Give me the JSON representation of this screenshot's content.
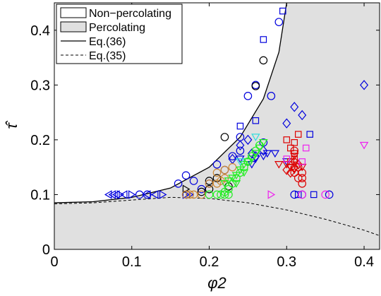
{
  "chart_data": {
    "type": "scatter",
    "xlabel": "φ2",
    "ylabel": "τ̂",
    "xlim": [
      0,
      0.42
    ],
    "ylim": [
      0,
      0.45
    ],
    "xticks": [
      "0",
      "0.1",
      "0.2",
      "0.3",
      "0.4"
    ],
    "yticks": [
      "0",
      "0.1",
      "0.2",
      "0.3",
      "0.4"
    ],
    "legend": {
      "placement": "top-left",
      "entries": [
        "Non−percolating",
        "Percolating",
        "Eq.(36)",
        "Eq.(35)"
      ]
    },
    "regions": [
      {
        "name": "Non−percolating",
        "fill": "#ffffff"
      },
      {
        "name": "Percolating",
        "fill": "#e0e0e0"
      }
    ],
    "curves": [
      {
        "name": "Eq.(36)",
        "style": "solid",
        "x": [
          0,
          0.05,
          0.1,
          0.15,
          0.2,
          0.24,
          0.27,
          0.29,
          0.3
        ],
        "y": [
          0.085,
          0.087,
          0.095,
          0.112,
          0.15,
          0.205,
          0.275,
          0.36,
          0.45
        ]
      },
      {
        "name": "Eq.(35)",
        "style": "dashed",
        "x": [
          0,
          0.05,
          0.1,
          0.15,
          0.2,
          0.25,
          0.3,
          0.35,
          0.4,
          0.42
        ],
        "y": [
          0.083,
          0.085,
          0.09,
          0.095,
          0.093,
          0.085,
          0.072,
          0.055,
          0.035,
          0.025
        ]
      }
    ],
    "series": [
      {
        "color": "#0000dd",
        "marker": "circle",
        "points": [
          [
            0.11,
            0.1
          ],
          [
            0.12,
            0.1
          ],
          [
            0.16,
            0.12
          ],
          [
            0.17,
            0.135
          ],
          [
            0.18,
            0.125
          ],
          [
            0.19,
            0.11
          ],
          [
            0.2,
            0.12
          ],
          [
            0.21,
            0.155
          ],
          [
            0.22,
            0.145
          ],
          [
            0.23,
            0.17
          ],
          [
            0.24,
            0.18
          ],
          [
            0.25,
            0.28
          ],
          [
            0.26,
            0.3
          ],
          [
            0.25,
            0.16
          ],
          [
            0.31,
            0.1
          ],
          [
            0.32,
            0.1
          ],
          [
            0.355,
            0.1
          ],
          [
            0.29,
            0.415
          ],
          [
            0.28,
            0.28
          ],
          [
            0.27,
            0.195
          ],
          [
            0.24,
            0.205
          ]
        ]
      },
      {
        "color": "#0000dd",
        "marker": "square",
        "points": [
          [
            0.295,
            0.435
          ],
          [
            0.27,
            0.383
          ],
          [
            0.24,
            0.225
          ],
          [
            0.26,
            0.235
          ],
          [
            0.315,
            0.1
          ],
          [
            0.33,
            0.21
          ],
          [
            0.335,
            0.1
          ]
        ]
      },
      {
        "color": "#0000dd",
        "marker": "diamond",
        "points": [
          [
            0.4,
            0.3
          ],
          [
            0.31,
            0.26
          ],
          [
            0.32,
            0.245
          ],
          [
            0.3,
            0.23
          ],
          [
            0.25,
            0.2
          ],
          [
            0.26,
            0.17
          ],
          [
            0.27,
            0.18
          ],
          [
            0.24,
            0.19
          ],
          [
            0.23,
            0.165
          ],
          [
            0.255,
            0.175
          ]
        ]
      },
      {
        "color": "#0000dd",
        "marker": "triangle-down",
        "points": [
          [
            0.24,
            0.165
          ],
          [
            0.255,
            0.155
          ],
          [
            0.27,
            0.17
          ],
          [
            0.275,
            0.175
          ],
          [
            0.26,
            0.165
          ],
          [
            0.285,
            0.175
          ],
          [
            0.3,
            0.16
          ]
        ]
      },
      {
        "color": "#0000dd",
        "marker": "triangle-left",
        "points": [
          [
            0.07,
            0.1
          ],
          [
            0.075,
            0.1
          ],
          [
            0.08,
            0.1
          ],
          [
            0.09,
            0.1
          ],
          [
            0.12,
            0.1
          ],
          [
            0.13,
            0.1
          ]
        ]
      },
      {
        "color": "#0000dd",
        "marker": "triangle-right",
        "points": [
          [
            0.085,
            0.1
          ],
          [
            0.1,
            0.1
          ],
          [
            0.14,
            0.1
          ],
          [
            0.17,
            0.1
          ],
          [
            0.175,
            0.1
          ]
        ]
      },
      {
        "color": "#000000",
        "marker": "circle",
        "points": [
          [
            0.27,
            0.345
          ],
          [
            0.26,
            0.298
          ],
          [
            0.22,
            0.205
          ],
          [
            0.21,
            0.13
          ],
          [
            0.2,
            0.125
          ],
          [
            0.2,
            0.11
          ],
          [
            0.19,
            0.105
          ],
          [
            0.225,
            0.115
          ]
        ]
      },
      {
        "color": "#000000",
        "marker": "triangle-right",
        "points": [
          [
            0.17,
            0.11
          ]
        ]
      },
      {
        "color": "#cc8833",
        "marker": "circle",
        "points": [
          [
            0.17,
            0.1
          ],
          [
            0.175,
            0.1
          ],
          [
            0.18,
            0.1
          ],
          [
            0.19,
            0.1
          ],
          [
            0.2,
            0.12
          ],
          [
            0.215,
            0.125
          ],
          [
            0.22,
            0.13
          ],
          [
            0.21,
            0.14
          ],
          [
            0.23,
            0.15
          ],
          [
            0.22,
            0.145
          ],
          [
            0.21,
            0.12
          ]
        ]
      },
      {
        "color": "#22ee22",
        "marker": "circle",
        "points": [
          [
            0.2,
            0.1
          ],
          [
            0.21,
            0.1
          ],
          [
            0.215,
            0.1
          ],
          [
            0.22,
            0.105
          ],
          [
            0.225,
            0.11
          ],
          [
            0.23,
            0.12
          ],
          [
            0.235,
            0.13
          ],
          [
            0.24,
            0.14
          ],
          [
            0.245,
            0.15
          ],
          [
            0.25,
            0.16
          ],
          [
            0.255,
            0.17
          ],
          [
            0.26,
            0.18
          ],
          [
            0.265,
            0.19
          ],
          [
            0.225,
            0.1
          ],
          [
            0.22,
            0.1
          ]
        ]
      },
      {
        "color": "#22ee22",
        "marker": "triangle-down",
        "points": [
          [
            0.22,
            0.12
          ],
          [
            0.225,
            0.125
          ],
          [
            0.23,
            0.13
          ],
          [
            0.235,
            0.135
          ],
          [
            0.24,
            0.145
          ],
          [
            0.245,
            0.155
          ],
          [
            0.25,
            0.16
          ],
          [
            0.255,
            0.165
          ],
          [
            0.26,
            0.175
          ],
          [
            0.265,
            0.185
          ],
          [
            0.27,
            0.195
          ],
          [
            0.235,
            0.12
          ],
          [
            0.245,
            0.14
          ]
        ]
      },
      {
        "color": "#33dddd",
        "marker": "triangle-down",
        "points": [
          [
            0.26,
            0.205
          ],
          [
            0.24,
            0.16
          ]
        ]
      },
      {
        "color": "#dd0000",
        "marker": "square",
        "points": [
          [
            0.305,
            0.16
          ],
          [
            0.31,
            0.175
          ],
          [
            0.31,
            0.195
          ],
          [
            0.315,
            0.21
          ],
          [
            0.3,
            0.2
          ],
          [
            0.305,
            0.185
          ],
          [
            0.31,
            0.165
          ]
        ]
      },
      {
        "color": "#dd0000",
        "marker": "circle",
        "points": [
          [
            0.31,
            0.14
          ],
          [
            0.315,
            0.15
          ],
          [
            0.32,
            0.13
          ],
          [
            0.31,
            0.18
          ],
          [
            0.32,
            0.12
          ],
          [
            0.315,
            0.13
          ],
          [
            0.32,
            0.14
          ]
        ]
      },
      {
        "color": "#dd0000",
        "marker": "triangle-down",
        "points": [
          [
            0.3,
            0.155
          ],
          [
            0.305,
            0.15
          ],
          [
            0.31,
            0.145
          ],
          [
            0.32,
            0.15
          ],
          [
            0.29,
            0.155
          ],
          [
            0.31,
            0.17
          ]
        ]
      },
      {
        "color": "#dd0000",
        "marker": "diamond",
        "points": [
          [
            0.31,
            0.16
          ],
          [
            0.31,
            0.15
          ],
          [
            0.305,
            0.14
          ],
          [
            0.315,
            0.155
          ],
          [
            0.3,
            0.145
          ]
        ]
      },
      {
        "color": "#ee22ee",
        "marker": "circle",
        "points": [
          [
            0.32,
            0.1
          ],
          [
            0.35,
            0.1
          ]
        ]
      },
      {
        "color": "#ee22ee",
        "marker": "square",
        "points": [
          [
            0.325,
            0.185
          ],
          [
            0.3,
            0.165
          ],
          [
            0.32,
            0.16
          ]
        ]
      },
      {
        "color": "#ee22ee",
        "marker": "triangle-right",
        "points": [
          [
            0.28,
            0.1
          ]
        ]
      },
      {
        "color": "#ee22ee",
        "marker": "triangle-down",
        "points": [
          [
            0.4,
            0.19
          ]
        ]
      }
    ]
  }
}
